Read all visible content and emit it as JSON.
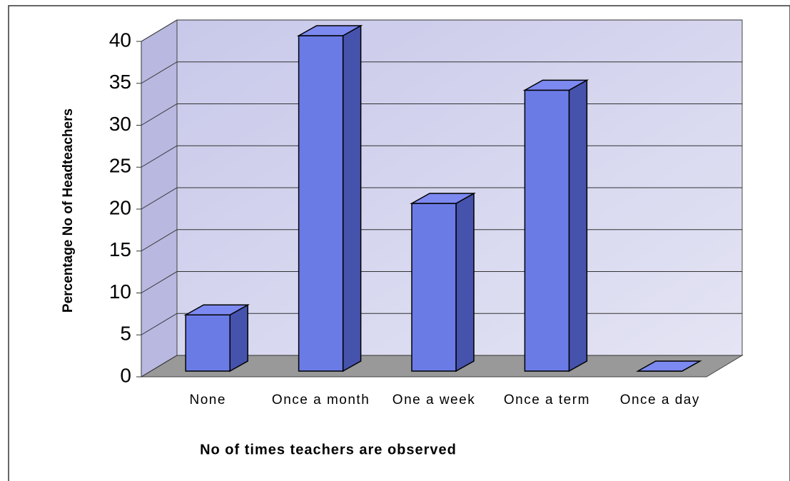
{
  "chart_data": {
    "type": "bar3d",
    "categories": [
      "None",
      "Once a month",
      "One a week",
      "Once a term",
      "Once a day"
    ],
    "values": [
      6.7,
      40,
      20,
      33.5,
      0
    ],
    "color": "#6b7be6",
    "ylim": [
      0,
      40
    ],
    "yticks": [
      0,
      5,
      10,
      15,
      20,
      25,
      30,
      35,
      40
    ],
    "grid": true,
    "ylabel": "Percentage No of Headteachers",
    "xlabel": "No of times teachers are observed"
  }
}
